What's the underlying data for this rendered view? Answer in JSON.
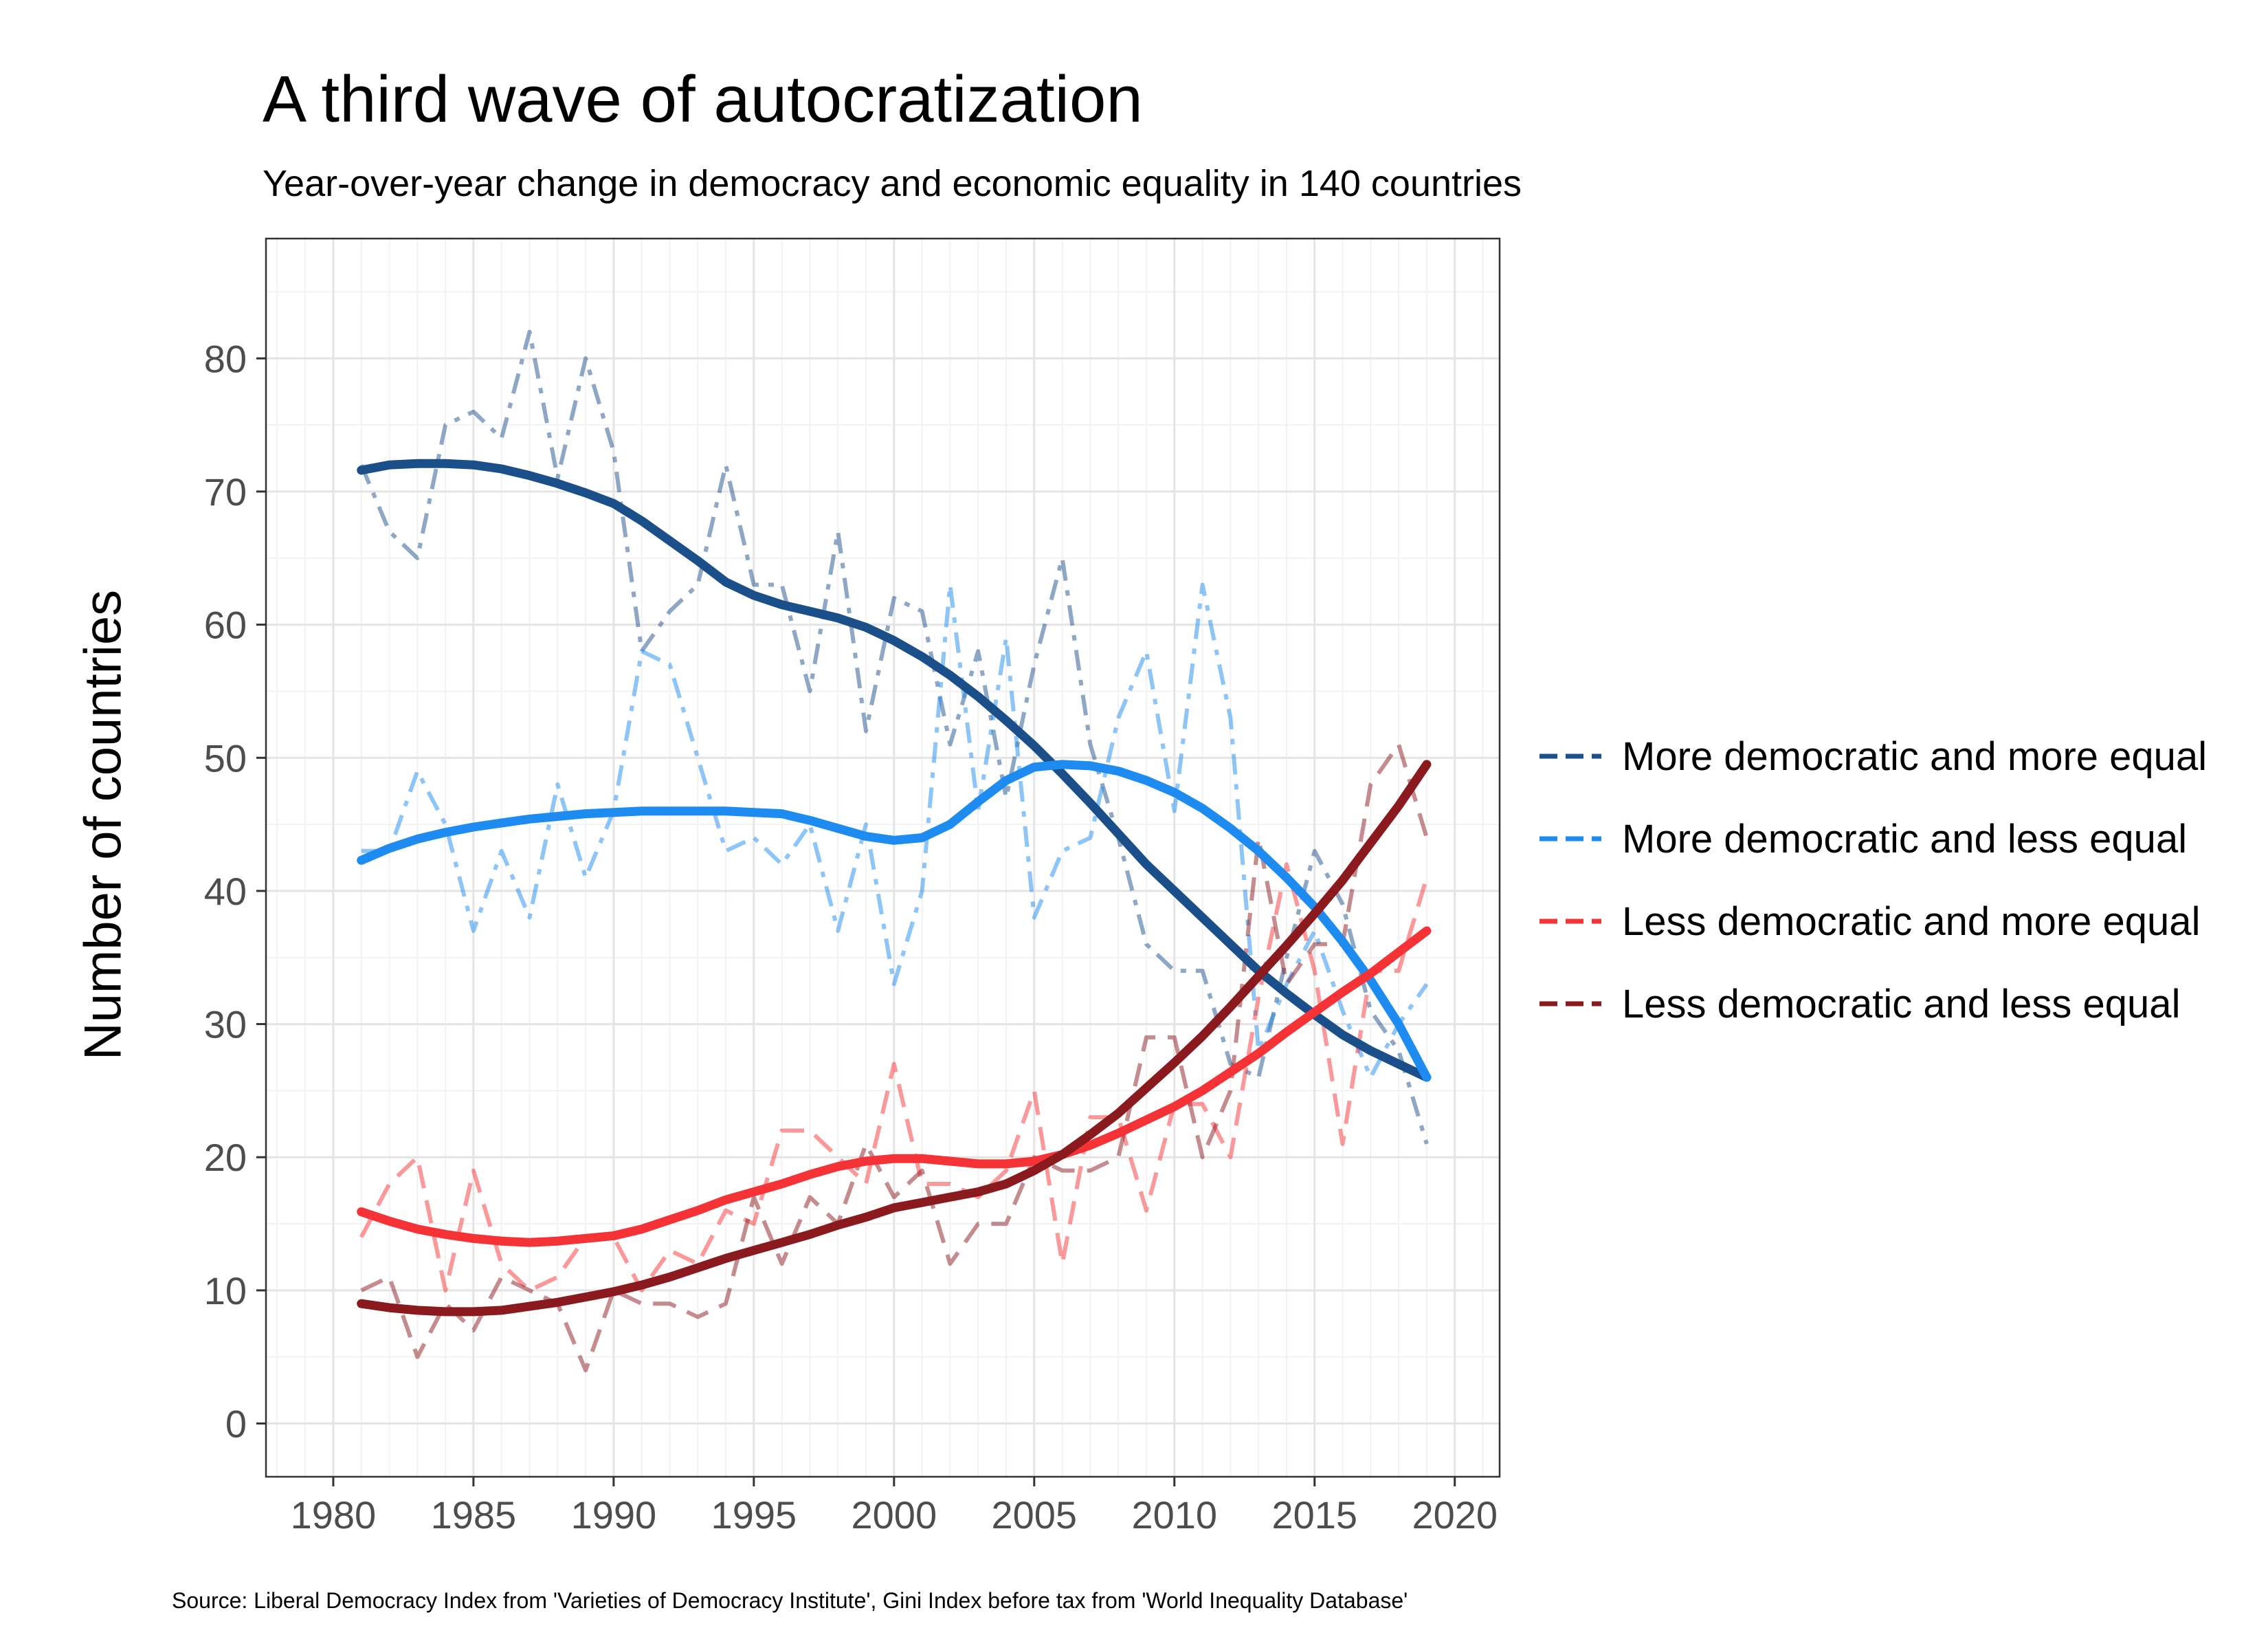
{
  "chart_data": {
    "type": "line",
    "title": "A third wave of autocratization",
    "subtitle": "Year-over-year change in democracy and economic equality in 140 countries",
    "xlabel": "",
    "ylabel": "Number of countries",
    "caption": "Source: Liberal Democracy Index from 'Varieties of Democracy Institute', Gini Index before tax from 'World Inequality Database'",
    "xlim": [
      1977.6,
      2021.6
    ],
    "ylim": [
      -4,
      89
    ],
    "x_ticks": [
      1980,
      1985,
      1990,
      1995,
      2000,
      2005,
      2010,
      2015,
      2020
    ],
    "y_ticks": [
      0,
      10,
      20,
      30,
      40,
      50,
      60,
      70,
      80
    ],
    "grid": true,
    "legend_position": "right",
    "x": [
      1981,
      1982,
      1983,
      1984,
      1985,
      1986,
      1987,
      1988,
      1989,
      1990,
      1991,
      1992,
      1993,
      1994,
      1995,
      1996,
      1997,
      1998,
      1999,
      2000,
      2001,
      2002,
      2003,
      2004,
      2005,
      2006,
      2007,
      2008,
      2009,
      2010,
      2011,
      2012,
      2013,
      2014,
      2015,
      2016,
      2017,
      2018,
      2019
    ],
    "series": [
      {
        "name": "More democratic and more equal",
        "color": "#1b4f8a",
        "values": [
          72,
          67,
          65,
          75,
          76,
          74,
          82,
          71,
          80,
          73,
          58,
          61,
          63,
          72,
          63,
          63,
          55,
          67,
          52,
          62,
          61,
          51,
          58,
          47,
          57,
          65,
          51,
          44,
          36,
          34,
          34,
          27,
          26,
          35,
          43,
          39,
          31,
          28,
          21
        ],
        "trend": [
          71.6,
          72.0,
          72.1,
          72.1,
          72.0,
          71.7,
          71.2,
          70.6,
          69.9,
          69.1,
          67.8,
          66.3,
          64.8,
          63.2,
          62.2,
          61.5,
          61.0,
          60.5,
          59.8,
          58.8,
          57.6,
          56.2,
          54.6,
          52.8,
          50.9,
          48.8,
          46.6,
          44.3,
          42.0,
          40.0,
          38.0,
          36.0,
          34.0,
          32.3,
          30.7,
          29.2,
          28.0,
          27.0,
          26.0
        ]
      },
      {
        "name": "More democratic and less equal",
        "color": "#1e8bf0",
        "values": [
          43,
          43,
          49,
          45,
          37,
          43,
          38,
          48,
          41,
          46,
          58,
          57,
          50,
          43,
          44,
          42,
          45,
          37,
          45,
          33,
          40,
          63,
          46,
          59,
          38,
          43,
          44,
          53,
          58,
          46,
          63,
          53,
          28,
          33,
          37,
          31,
          26,
          30,
          33
        ],
        "trend": [
          42.3,
          43.2,
          43.9,
          44.4,
          44.8,
          45.1,
          45.4,
          45.6,
          45.8,
          45.9,
          46.0,
          46.0,
          46.0,
          46.0,
          45.9,
          45.8,
          45.3,
          44.7,
          44.1,
          43.8,
          44.0,
          45.0,
          46.7,
          48.3,
          49.3,
          49.5,
          49.4,
          49.0,
          48.3,
          47.4,
          46.2,
          44.7,
          43.0,
          41.0,
          38.8,
          36.2,
          33.3,
          30.0,
          26.0
        ]
      },
      {
        "name": "Less democratic and more equal",
        "color": "#f53235",
        "values": [
          14,
          18,
          20,
          10,
          19,
          12,
          10,
          11,
          14,
          14,
          10,
          13,
          12,
          16,
          15,
          22,
          22,
          20,
          18,
          27,
          18,
          18,
          17,
          19,
          25,
          12,
          23,
          23,
          16,
          24,
          24,
          20,
          32,
          42,
          34,
          21,
          34,
          34,
          41
        ],
        "trend": [
          15.9,
          15.2,
          14.6,
          14.2,
          13.9,
          13.7,
          13.6,
          13.7,
          13.9,
          14.1,
          14.6,
          15.3,
          16.0,
          16.8,
          17.4,
          18.0,
          18.7,
          19.3,
          19.7,
          19.9,
          19.9,
          19.7,
          19.5,
          19.5,
          19.7,
          20.2,
          20.9,
          21.8,
          22.8,
          23.8,
          25.0,
          26.4,
          27.8,
          29.4,
          30.9,
          32.4,
          33.8,
          35.4,
          37.0
        ]
      },
      {
        "name": "Less democratic and less equal",
        "color": "#8b1a1f",
        "values": [
          10,
          11,
          5,
          9,
          7,
          11,
          10,
          9,
          4,
          10,
          9,
          9,
          8,
          9,
          17,
          12,
          17,
          15,
          21,
          17,
          19,
          12,
          15,
          15,
          20,
          19,
          19,
          20,
          29,
          29,
          20,
          25,
          44,
          33,
          36,
          36,
          48,
          51,
          44
        ],
        "trend": [
          9.0,
          8.7,
          8.5,
          8.4,
          8.4,
          8.5,
          8.8,
          9.1,
          9.5,
          9.9,
          10.4,
          11.0,
          11.7,
          12.4,
          13.0,
          13.6,
          14.2,
          14.9,
          15.5,
          16.2,
          16.6,
          17.0,
          17.4,
          18.0,
          19.0,
          20.2,
          21.7,
          23.3,
          25.2,
          27.1,
          29.1,
          31.3,
          33.6,
          35.9,
          38.3,
          40.8,
          43.6,
          46.4,
          49.5
        ]
      }
    ]
  }
}
